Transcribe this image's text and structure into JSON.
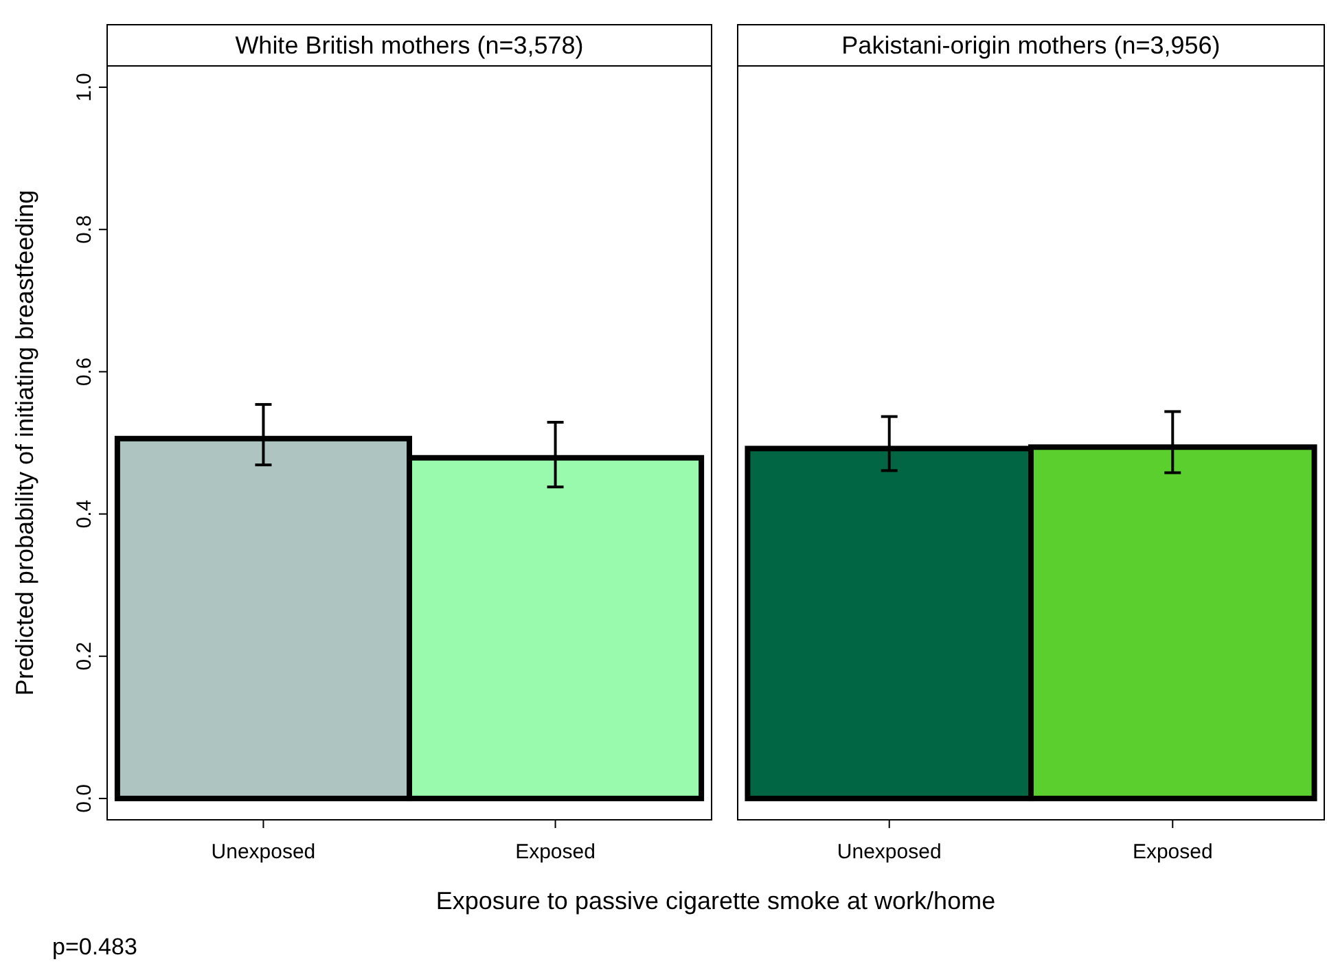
{
  "chart_data": [
    {
      "type": "bar",
      "title": "White British mothers (n=3,578)",
      "ylabel": "Predicted probability of initiating breastfeeding",
      "xlabel": "Exposure to passive cigarette smoke at work/home",
      "categories": [
        "Unexposed",
        "Exposed"
      ],
      "values": [
        0.506,
        0.479
      ],
      "colors": [
        "#adc4c0",
        "#99f9ad"
      ],
      "errors": [
        [
          0.469,
          0.554
        ],
        [
          0.438,
          0.529
        ]
      ],
      "ylim": [
        -0.03,
        1.03
      ],
      "yticks": [
        {
          "value": 0,
          "label": "0.0"
        },
        0.2,
        0.4,
        0.6,
        0.8,
        {
          "value": 1,
          "label": "1.0"
        }
      ],
      "grid": false,
      "annotations": [
        "p=0.483"
      ]
    },
    {
      "type": "bar",
      "title": "Pakistani-origin mothers (n=3,956)",
      "categories": [
        "Unexposed",
        "Exposed"
      ],
      "values": [
        0.492,
        0.494
      ],
      "colors": [
        "#006644",
        "#5bcf2e"
      ],
      "errors": [
        [
          0.461,
          0.537
        ],
        [
          0.458,
          0.544
        ]
      ],
      "ylim": [
        -0.03,
        1.03
      ],
      "grid": false,
      "tick_labels": "x"
    }
  ]
}
